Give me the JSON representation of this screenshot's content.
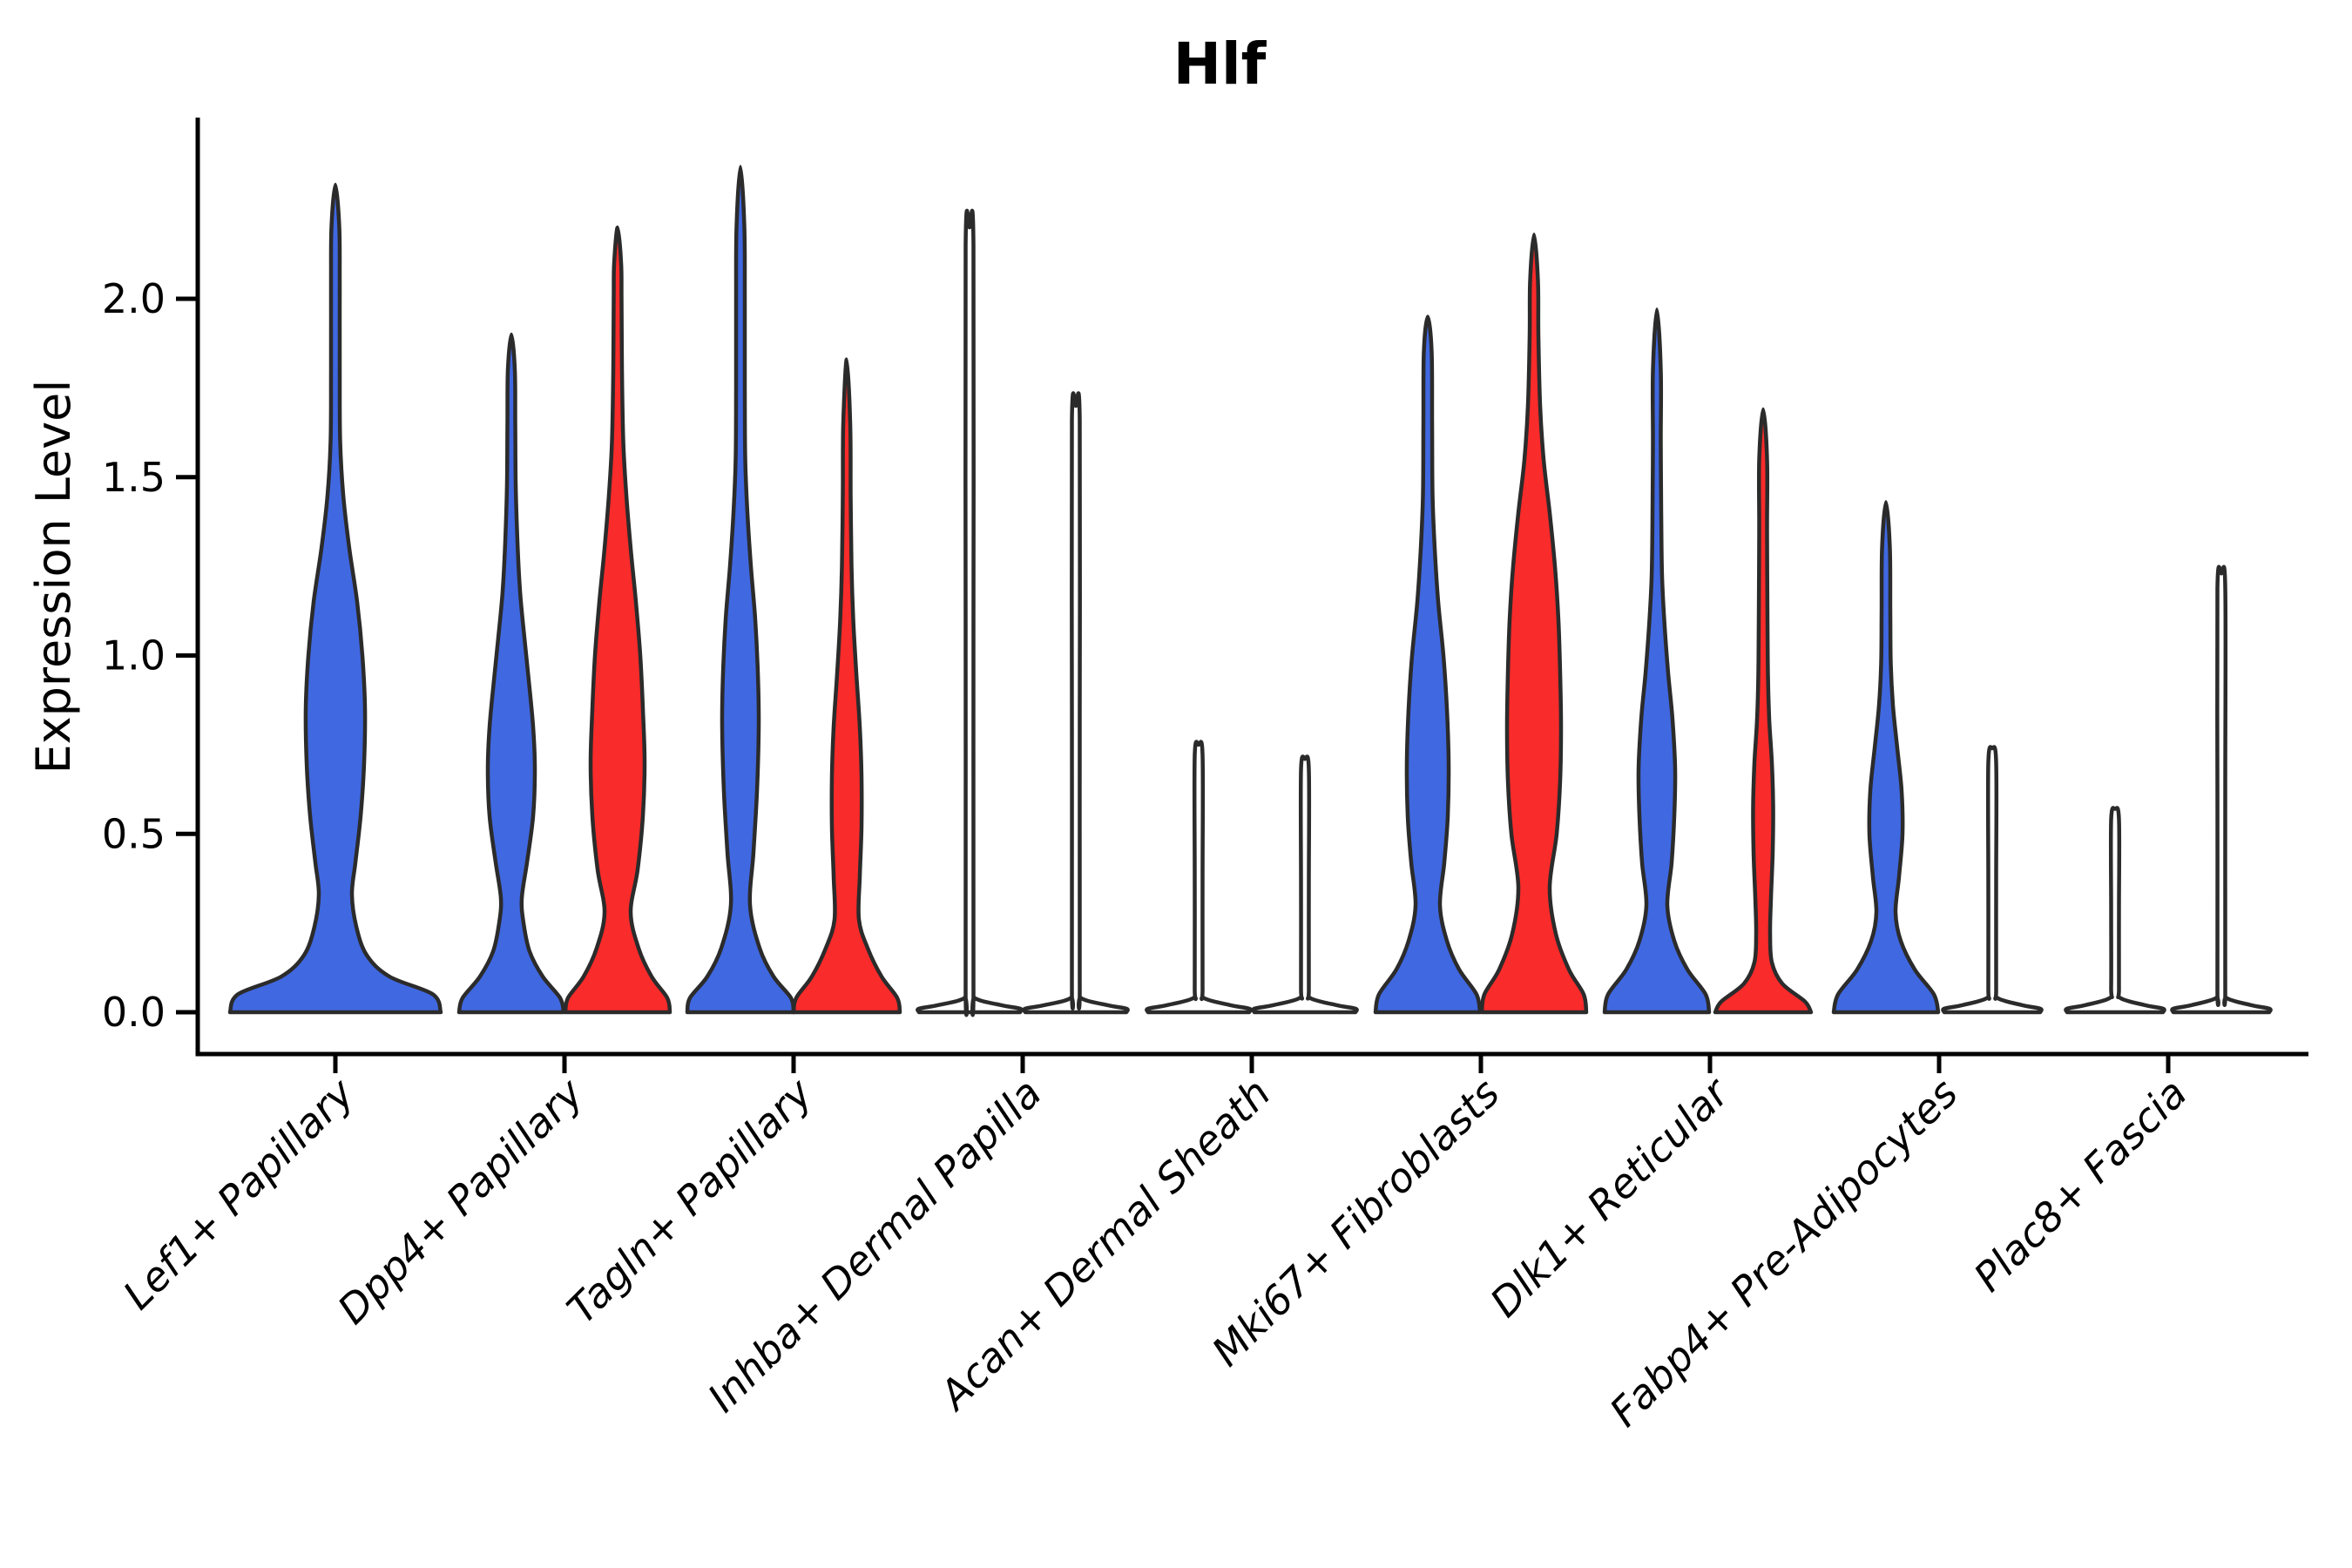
{
  "page": {
    "background": "#ffffff"
  },
  "chart_data": {
    "type": "violin",
    "title": "Hlf",
    "ylabel": "Expression Level",
    "xlabel": "",
    "ylim": [
      -0.1,
      2.51
    ],
    "yticks": [
      0.0,
      0.5,
      1.0,
      1.5,
      2.0
    ],
    "ytick_labels": [
      "0.0",
      "0.5",
      "1.0",
      "1.5",
      "2.0"
    ],
    "grid": false,
    "legend": "none",
    "split_colors": {
      "blue": "#4068E1",
      "red": "#F92B2B",
      "none": "#FFFFFF"
    },
    "outline_color": "#2B2B2B",
    "categories": [
      "Lef1+ Papillary",
      "Dpp4+ Papillary",
      "Tagln+ Papillary",
      "Inhba+ Dermal Papilla",
      "Acan+ Dermal Sheath",
      "Mki67+ Fibroblasts",
      "Dlk1+ Reticular",
      "Fabp4+ Pre-Adipocytes",
      "Plac8+ Fascia"
    ],
    "violins": [
      {
        "category_index": 0,
        "slot": "center",
        "color": "blue",
        "kind": "violin",
        "max": 2.32,
        "profile": [
          [
            0,
            121
          ],
          [
            0.05,
            112
          ],
          [
            0.1,
            62
          ],
          [
            0.16,
            36
          ],
          [
            0.24,
            24
          ],
          [
            0.33,
            19
          ],
          [
            0.42,
            23
          ],
          [
            0.55,
            29
          ],
          [
            0.7,
            33
          ],
          [
            0.85,
            34
          ],
          [
            1.0,
            31
          ],
          [
            1.15,
            25
          ],
          [
            1.3,
            16
          ],
          [
            1.45,
            9
          ],
          [
            1.6,
            5.5
          ],
          [
            1.8,
            5
          ],
          [
            2.05,
            5
          ],
          [
            2.2,
            4.5
          ],
          [
            2.32,
            0
          ]
        ]
      },
      {
        "category_index": 1,
        "slot": "left",
        "color": "blue",
        "kind": "violin",
        "max": 1.9,
        "profile": [
          [
            0,
            60
          ],
          [
            0.04,
            56
          ],
          [
            0.1,
            36
          ],
          [
            0.17,
            21
          ],
          [
            0.25,
            14
          ],
          [
            0.32,
            12
          ],
          [
            0.42,
            18
          ],
          [
            0.55,
            25
          ],
          [
            0.68,
            27
          ],
          [
            0.8,
            25
          ],
          [
            0.93,
            20
          ],
          [
            1.05,
            15
          ],
          [
            1.18,
            10
          ],
          [
            1.32,
            7
          ],
          [
            1.48,
            5
          ],
          [
            1.65,
            4.5
          ],
          [
            1.8,
            4
          ],
          [
            1.9,
            0
          ]
        ]
      },
      {
        "category_index": 1,
        "slot": "right",
        "color": "red",
        "kind": "violin",
        "max": 2.2,
        "profile": [
          [
            0,
            60
          ],
          [
            0.04,
            57
          ],
          [
            0.1,
            39
          ],
          [
            0.18,
            24
          ],
          [
            0.28,
            15
          ],
          [
            0.4,
            23
          ],
          [
            0.55,
            29
          ],
          [
            0.7,
            31
          ],
          [
            0.85,
            29
          ],
          [
            1.0,
            26
          ],
          [
            1.15,
            21
          ],
          [
            1.3,
            15
          ],
          [
            1.45,
            10
          ],
          [
            1.6,
            6.5
          ],
          [
            1.8,
            5
          ],
          [
            2.0,
            4.5
          ],
          [
            2.1,
            4
          ],
          [
            2.2,
            0
          ]
        ]
      },
      {
        "category_index": 2,
        "slot": "left",
        "color": "blue",
        "kind": "violin",
        "max": 2.37,
        "profile": [
          [
            0,
            61
          ],
          [
            0.04,
            58
          ],
          [
            0.1,
            38
          ],
          [
            0.18,
            22
          ],
          [
            0.3,
            11
          ],
          [
            0.45,
            15
          ],
          [
            0.62,
            19
          ],
          [
            0.8,
            21
          ],
          [
            0.95,
            20
          ],
          [
            1.1,
            17
          ],
          [
            1.25,
            12
          ],
          [
            1.4,
            8
          ],
          [
            1.55,
            5.5
          ],
          [
            1.75,
            5
          ],
          [
            2.0,
            5
          ],
          [
            2.2,
            4.5
          ],
          [
            2.37,
            0
          ]
        ]
      },
      {
        "category_index": 2,
        "slot": "right",
        "color": "red",
        "kind": "violin",
        "max": 1.83,
        "profile": [
          [
            0,
            61
          ],
          [
            0.04,
            58
          ],
          [
            0.1,
            40
          ],
          [
            0.18,
            24
          ],
          [
            0.26,
            14
          ],
          [
            0.38,
            15
          ],
          [
            0.52,
            17
          ],
          [
            0.66,
            17
          ],
          [
            0.8,
            15
          ],
          [
            0.95,
            11
          ],
          [
            1.1,
            7.5
          ],
          [
            1.25,
            5.5
          ],
          [
            1.45,
            4.5
          ],
          [
            1.65,
            4
          ],
          [
            1.83,
            0
          ]
        ]
      },
      {
        "category_index": 3,
        "slot": "left",
        "color": "none",
        "kind": "line",
        "max": 2.2,
        "profile": [
          [
            0,
            58
          ],
          [
            0.01,
            58
          ],
          [
            0.02,
            36
          ],
          [
            0.04,
            6
          ],
          [
            0.08,
            4.5
          ],
          [
            1.1,
            4.5
          ],
          [
            2.15,
            4.5
          ],
          [
            2.2,
            0
          ]
        ]
      },
      {
        "category_index": 3,
        "slot": "right",
        "color": "none",
        "kind": "line",
        "max": 1.7,
        "profile": [
          [
            0,
            58
          ],
          [
            0.01,
            58
          ],
          [
            0.02,
            36
          ],
          [
            0.04,
            6
          ],
          [
            0.08,
            4.5
          ],
          [
            0.85,
            4.5
          ],
          [
            1.66,
            4.5
          ],
          [
            1.7,
            0
          ]
        ]
      },
      {
        "category_index": 4,
        "slot": "left",
        "color": "none",
        "kind": "line",
        "max": 0.75,
        "profile": [
          [
            0,
            58
          ],
          [
            0.01,
            58
          ],
          [
            0.02,
            36
          ],
          [
            0.04,
            6
          ],
          [
            0.07,
            4.5
          ],
          [
            0.38,
            4.5
          ],
          [
            0.72,
            4.5
          ],
          [
            0.75,
            0
          ]
        ]
      },
      {
        "category_index": 4,
        "slot": "right",
        "color": "none",
        "kind": "line",
        "max": 0.71,
        "profile": [
          [
            0,
            58
          ],
          [
            0.01,
            58
          ],
          [
            0.02,
            36
          ],
          [
            0.04,
            6
          ],
          [
            0.07,
            4.5
          ],
          [
            0.36,
            4.5
          ],
          [
            0.68,
            4.5
          ],
          [
            0.71,
            0
          ]
        ]
      },
      {
        "category_index": 5,
        "slot": "left",
        "color": "blue",
        "kind": "violin",
        "max": 1.95,
        "profile": [
          [
            0,
            60
          ],
          [
            0.05,
            56
          ],
          [
            0.12,
            36
          ],
          [
            0.2,
            22
          ],
          [
            0.3,
            14
          ],
          [
            0.42,
            19
          ],
          [
            0.55,
            23
          ],
          [
            0.7,
            24
          ],
          [
            0.85,
            22
          ],
          [
            1.0,
            18
          ],
          [
            1.15,
            12
          ],
          [
            1.3,
            8
          ],
          [
            1.45,
            5.5
          ],
          [
            1.65,
            5
          ],
          [
            1.85,
            4.5
          ],
          [
            1.95,
            0
          ]
        ]
      },
      {
        "category_index": 5,
        "slot": "right",
        "color": "red",
        "kind": "violin",
        "max": 2.18,
        "profile": [
          [
            0,
            60
          ],
          [
            0.05,
            57
          ],
          [
            0.12,
            40
          ],
          [
            0.22,
            25
          ],
          [
            0.35,
            18
          ],
          [
            0.5,
            26
          ],
          [
            0.65,
            30
          ],
          [
            0.8,
            31
          ],
          [
            0.95,
            30
          ],
          [
            1.1,
            28
          ],
          [
            1.25,
            24
          ],
          [
            1.4,
            18
          ],
          [
            1.55,
            11
          ],
          [
            1.7,
            7
          ],
          [
            1.9,
            5
          ],
          [
            2.05,
            4.5
          ],
          [
            2.18,
            0
          ]
        ]
      },
      {
        "category_index": 6,
        "slot": "left",
        "color": "blue",
        "kind": "violin",
        "max": 1.97,
        "profile": [
          [
            0,
            60
          ],
          [
            0.05,
            56
          ],
          [
            0.12,
            35
          ],
          [
            0.2,
            20
          ],
          [
            0.3,
            12
          ],
          [
            0.42,
            17
          ],
          [
            0.55,
            20
          ],
          [
            0.68,
            21
          ],
          [
            0.82,
            18
          ],
          [
            0.95,
            13
          ],
          [
            1.08,
            9
          ],
          [
            1.22,
            6
          ],
          [
            1.4,
            5
          ],
          [
            1.6,
            4.5
          ],
          [
            1.8,
            4.5
          ],
          [
            1.97,
            0
          ]
        ]
      },
      {
        "category_index": 6,
        "slot": "right",
        "color": "red",
        "kind": "violin",
        "max": 1.69,
        "profile": [
          [
            0,
            55
          ],
          [
            0.03,
            48
          ],
          [
            0.08,
            22
          ],
          [
            0.14,
            10
          ],
          [
            0.22,
            8
          ],
          [
            0.32,
            9
          ],
          [
            0.45,
            11
          ],
          [
            0.58,
            11.5
          ],
          [
            0.7,
            10
          ],
          [
            0.82,
            7
          ],
          [
            0.95,
            5.5
          ],
          [
            1.1,
            5
          ],
          [
            1.35,
            4.5
          ],
          [
            1.55,
            4.5
          ],
          [
            1.69,
            0
          ]
        ]
      },
      {
        "category_index": 7,
        "slot": "left",
        "color": "blue",
        "kind": "violin",
        "max": 1.43,
        "profile": [
          [
            0,
            60
          ],
          [
            0.05,
            55
          ],
          [
            0.12,
            33
          ],
          [
            0.2,
            17
          ],
          [
            0.28,
            11
          ],
          [
            0.38,
            15
          ],
          [
            0.5,
            19
          ],
          [
            0.62,
            18
          ],
          [
            0.74,
            13
          ],
          [
            0.86,
            8
          ],
          [
            0.98,
            5.5
          ],
          [
            1.12,
            5
          ],
          [
            1.3,
            4.5
          ],
          [
            1.43,
            0
          ]
        ]
      },
      {
        "category_index": 7,
        "slot": "right",
        "color": "none",
        "kind": "line",
        "max": 0.74,
        "profile": [
          [
            0,
            55
          ],
          [
            0.01,
            55
          ],
          [
            0.02,
            34
          ],
          [
            0.04,
            6
          ],
          [
            0.07,
            4.5
          ],
          [
            0.37,
            4.5
          ],
          [
            0.7,
            4.5
          ],
          [
            0.74,
            0
          ]
        ]
      },
      {
        "category_index": 8,
        "slot": "left",
        "color": "none",
        "kind": "line",
        "max": 0.57,
        "profile": [
          [
            0,
            55
          ],
          [
            0.01,
            55
          ],
          [
            0.02,
            34
          ],
          [
            0.04,
            6
          ],
          [
            0.07,
            4.5
          ],
          [
            0.29,
            4.5
          ],
          [
            0.54,
            4.5
          ],
          [
            0.57,
            0
          ]
        ]
      },
      {
        "category_index": 8,
        "slot": "right",
        "color": "none",
        "kind": "line",
        "max": 1.23,
        "profile": [
          [
            0,
            55
          ],
          [
            0.01,
            55
          ],
          [
            0.02,
            34
          ],
          [
            0.04,
            6
          ],
          [
            0.07,
            4.5
          ],
          [
            0.62,
            4.5
          ],
          [
            1.19,
            4.5
          ],
          [
            1.23,
            0
          ]
        ]
      }
    ]
  }
}
